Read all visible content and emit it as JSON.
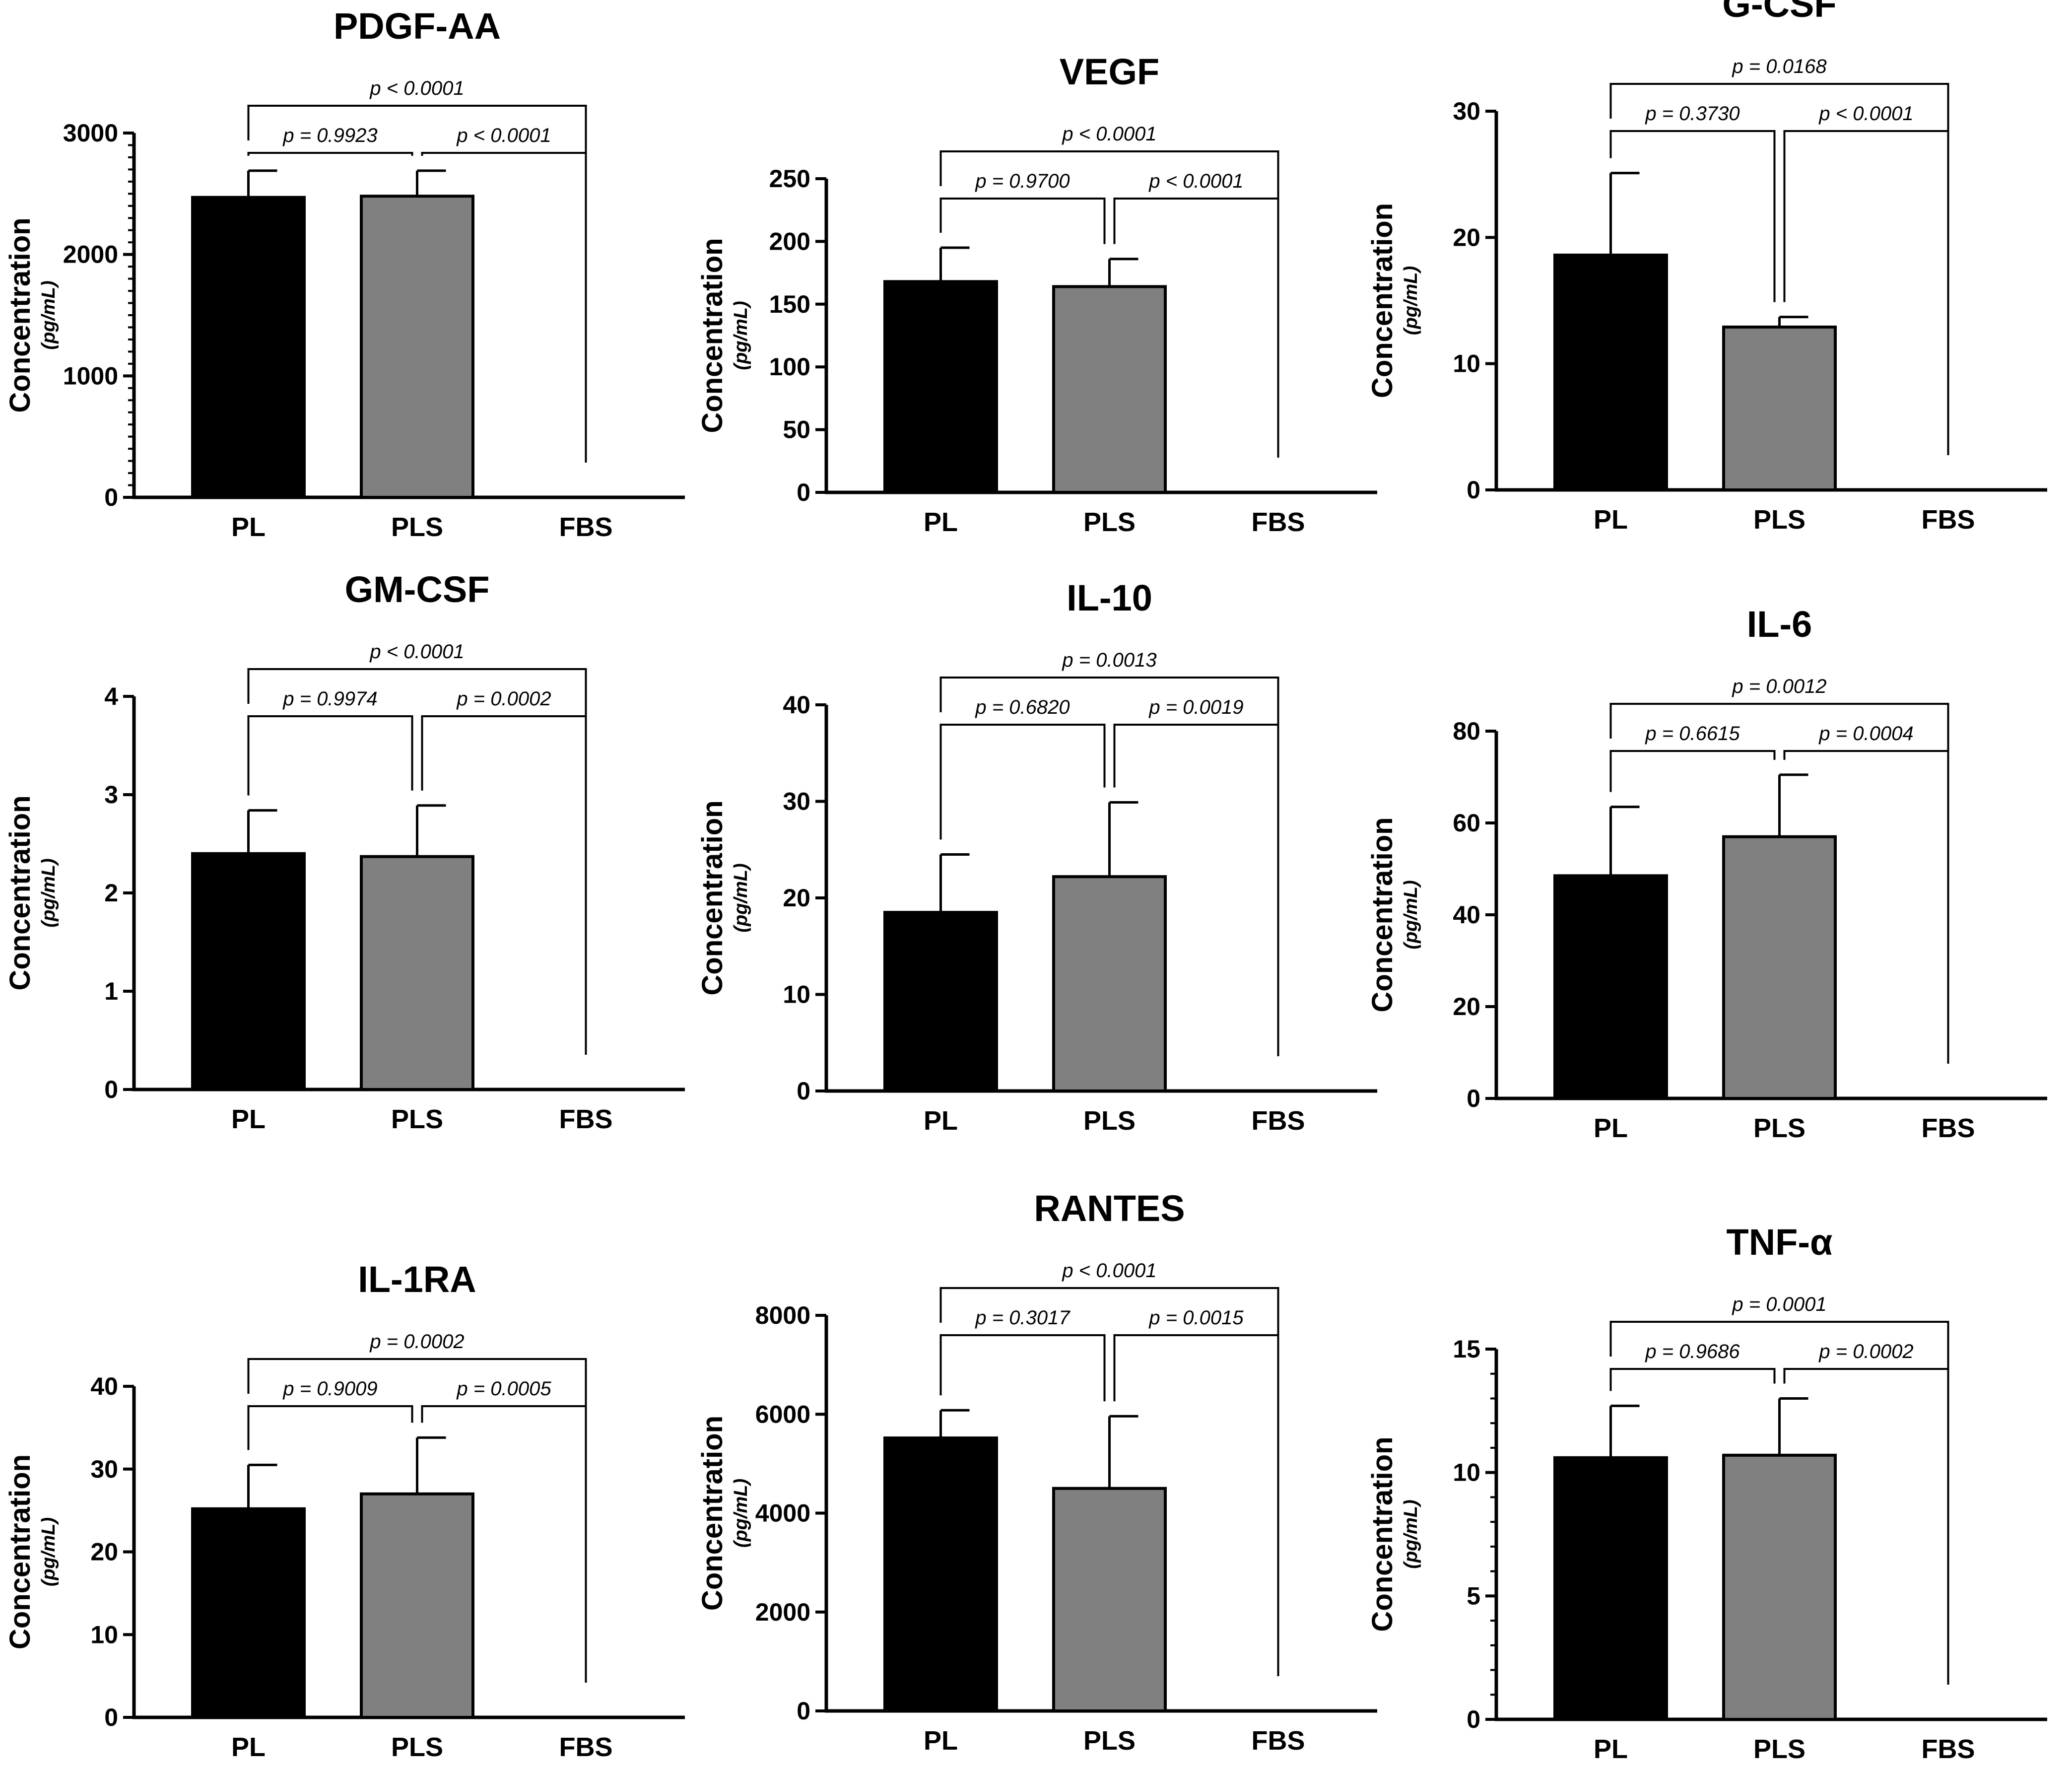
{
  "figure": {
    "categories": [
      "PL",
      "PLS",
      "FBS"
    ],
    "ylabel": "Concentration",
    "yunit": "(pg/mL)",
    "colors": {
      "PL": "#000000",
      "PLS": "#808080",
      "FBS": "#ffffff",
      "axis": "#000000"
    }
  },
  "chart_data": [
    {
      "type": "bar",
      "title": "PDGF-AA",
      "categories": [
        "PL",
        "PLS",
        "FBS"
      ],
      "values": [
        2470,
        2480,
        0
      ],
      "errors": [
        220,
        210,
        0
      ],
      "ylim": [
        0,
        3000
      ],
      "yticks": [
        0,
        1000,
        2000,
        3000
      ],
      "minor_ticks": 10,
      "ylabel": "Concentration",
      "yunit": "(pg/mL)",
      "comparisons": [
        {
          "groups": [
            "PL",
            "PLS"
          ],
          "label": "p = 0.9923"
        },
        {
          "groups": [
            "PLS",
            "FBS"
          ],
          "label": "p < 0.0001"
        },
        {
          "groups": [
            "PL",
            "FBS"
          ],
          "label": "p < 0.0001"
        }
      ]
    },
    {
      "type": "bar",
      "title": "VEGF",
      "categories": [
        "PL",
        "PLS",
        "FBS"
      ],
      "values": [
        168,
        164,
        0
      ],
      "errors": [
        27,
        22,
        0
      ],
      "ylim": [
        0,
        250
      ],
      "yticks": [
        0,
        50,
        100,
        150,
        200,
        250
      ],
      "minor_ticks": 0,
      "ylabel": "Concentration",
      "yunit": "(pg/mL)",
      "comparisons": [
        {
          "groups": [
            "PL",
            "PLS"
          ],
          "label": "p = 0.9700"
        },
        {
          "groups": [
            "PLS",
            "FBS"
          ],
          "label": "p < 0.0001"
        },
        {
          "groups": [
            "PL",
            "FBS"
          ],
          "label": "p < 0.0001"
        }
      ]
    },
    {
      "type": "bar",
      "title": "G-CSF",
      "categories": [
        "PL",
        "PLS",
        "FBS"
      ],
      "values": [
        18.6,
        12.9,
        0
      ],
      "errors": [
        6.5,
        0.8,
        0
      ],
      "ylim": [
        0,
        30
      ],
      "yticks": [
        0,
        10,
        20,
        30
      ],
      "minor_ticks": 0,
      "ylabel": "Concentration",
      "yunit": "(pg/mL)",
      "comparisons": [
        {
          "groups": [
            "PL",
            "PLS"
          ],
          "label": "p = 0.3730"
        },
        {
          "groups": [
            "PLS",
            "FBS"
          ],
          "label": "p < 0.0001"
        },
        {
          "groups": [
            "PL",
            "FBS"
          ],
          "label": "p = 0.0168"
        }
      ]
    },
    {
      "type": "bar",
      "title": "GM-CSF",
      "categories": [
        "PL",
        "PLS",
        "FBS"
      ],
      "values": [
        2.4,
        2.37,
        0
      ],
      "errors": [
        0.44,
        0.52,
        0
      ],
      "ylim": [
        0,
        4
      ],
      "yticks": [
        0,
        1,
        2,
        3,
        4
      ],
      "minor_ticks": 0,
      "ylabel": "Concentration",
      "yunit": "(pg/mL)",
      "comparisons": [
        {
          "groups": [
            "PL",
            "PLS"
          ],
          "label": "p = 0.9974"
        },
        {
          "groups": [
            "PLS",
            "FBS"
          ],
          "label": "p = 0.0002"
        },
        {
          "groups": [
            "PL",
            "FBS"
          ],
          "label": "p < 0.0001"
        }
      ]
    },
    {
      "type": "bar",
      "title": "IL-10",
      "categories": [
        "PL",
        "PLS",
        "FBS"
      ],
      "values": [
        18.5,
        22.2,
        0
      ],
      "errors": [
        6.0,
        7.7,
        0
      ],
      "ylim": [
        0,
        40
      ],
      "yticks": [
        0,
        10,
        20,
        30,
        40
      ],
      "minor_ticks": 0,
      "ylabel": "Concentration",
      "yunit": "(pg/mL)",
      "comparisons": [
        {
          "groups": [
            "PL",
            "PLS"
          ],
          "label": "p = 0.6820"
        },
        {
          "groups": [
            "PLS",
            "FBS"
          ],
          "label": "p = 0.0019"
        },
        {
          "groups": [
            "PL",
            "FBS"
          ],
          "label": "p = 0.0013"
        }
      ]
    },
    {
      "type": "bar",
      "title": "IL-6",
      "categories": [
        "PL",
        "PLS",
        "FBS"
      ],
      "values": [
        48.5,
        57,
        0
      ],
      "errors": [
        15,
        13.5,
        0
      ],
      "ylim": [
        0,
        80
      ],
      "yticks": [
        0,
        20,
        40,
        60,
        80
      ],
      "minor_ticks": 0,
      "ylabel": "Concentration",
      "yunit": "(pg/mL)",
      "comparisons": [
        {
          "groups": [
            "PL",
            "PLS"
          ],
          "label": "p = 0.6615"
        },
        {
          "groups": [
            "PLS",
            "FBS"
          ],
          "label": "p = 0.0004"
        },
        {
          "groups": [
            "PL",
            "FBS"
          ],
          "label": "p = 0.0012"
        }
      ]
    },
    {
      "type": "bar",
      "title": "IL-1RA",
      "categories": [
        "PL",
        "PLS",
        "FBS"
      ],
      "values": [
        25.2,
        27,
        0
      ],
      "errors": [
        5.3,
        6.8,
        0
      ],
      "ylim": [
        0,
        40
      ],
      "yticks": [
        0,
        10,
        20,
        30,
        40
      ],
      "minor_ticks": 0,
      "ylabel": "Concentration",
      "yunit": "(pg/mL)",
      "comparisons": [
        {
          "groups": [
            "PL",
            "PLS"
          ],
          "label": "p = 0.9009"
        },
        {
          "groups": [
            "PLS",
            "FBS"
          ],
          "label": "p = 0.0005"
        },
        {
          "groups": [
            "PL",
            "FBS"
          ],
          "label": "p = 0.0002"
        }
      ]
    },
    {
      "type": "bar",
      "title": "RANTES",
      "categories": [
        "PL",
        "PLS",
        "FBS"
      ],
      "values": [
        5520,
        4500,
        0
      ],
      "errors": [
        560,
        1460,
        0
      ],
      "ylim": [
        0,
        8000
      ],
      "yticks": [
        0,
        2000,
        4000,
        6000,
        8000
      ],
      "minor_ticks": 0,
      "ylabel": "Concentration",
      "yunit": "(pg/mL)",
      "comparisons": [
        {
          "groups": [
            "PL",
            "PLS"
          ],
          "label": "p = 0.3017"
        },
        {
          "groups": [
            "PLS",
            "FBS"
          ],
          "label": "p = 0.0015"
        },
        {
          "groups": [
            "PL",
            "FBS"
          ],
          "label": "p < 0.0001"
        }
      ]
    },
    {
      "type": "bar",
      "title": "TNF-α",
      "categories": [
        "PL",
        "PLS",
        "FBS"
      ],
      "values": [
        10.6,
        10.7,
        0
      ],
      "errors": [
        2.1,
        2.3,
        0
      ],
      "ylim": [
        0,
        15
      ],
      "yticks": [
        0,
        5,
        10,
        15
      ],
      "minor_ticks": 5,
      "ylabel": "Concentration",
      "yunit": "(pg/mL)",
      "comparisons": [
        {
          "groups": [
            "PL",
            "PLS"
          ],
          "label": "p = 0.9686"
        },
        {
          "groups": [
            "PLS",
            "FBS"
          ],
          "label": "p = 0.0002"
        },
        {
          "groups": [
            "PL",
            "FBS"
          ],
          "label": "p = 0.0001"
        }
      ]
    }
  ]
}
